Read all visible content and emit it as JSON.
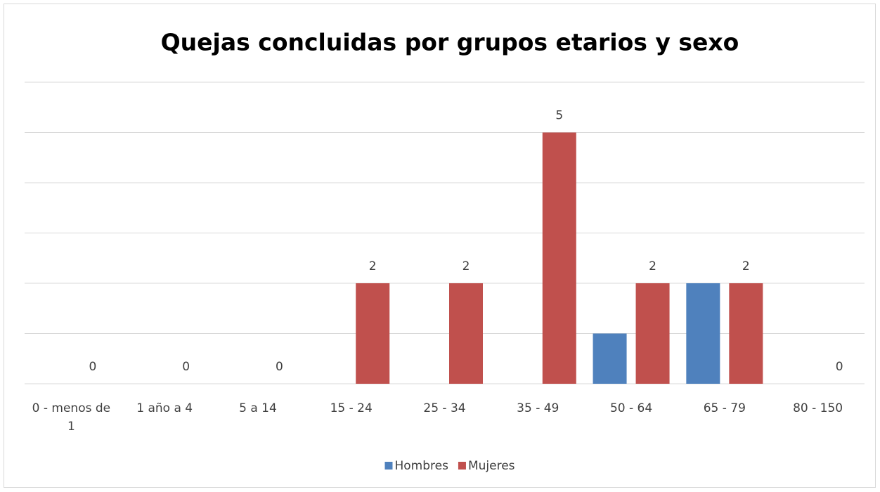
{
  "chart_data": {
    "type": "bar",
    "title": "Quejas concluidas por grupos etarios y sexo",
    "categories": [
      "0 - menos de 1",
      "1 año a 4",
      "5 a 14",
      "15 - 24",
      "25 - 34",
      "35 - 49",
      "50 - 64",
      "65 - 79",
      "80 - 150"
    ],
    "series": [
      {
        "name": "Hombres",
        "color": "#4f81bd",
        "values": [
          0,
          0,
          0,
          0,
          0,
          0,
          1,
          2,
          0
        ],
        "data_labels": false
      },
      {
        "name": "Mujeres",
        "color": "#c0504d",
        "values": [
          0,
          0,
          0,
          2,
          2,
          5,
          2,
          2,
          0
        ],
        "data_labels": true
      }
    ],
    "ylim": [
      0,
      6
    ],
    "yticks": [
      0,
      1,
      2,
      3,
      4,
      5,
      6
    ],
    "grid": true,
    "legend": "bottom"
  }
}
